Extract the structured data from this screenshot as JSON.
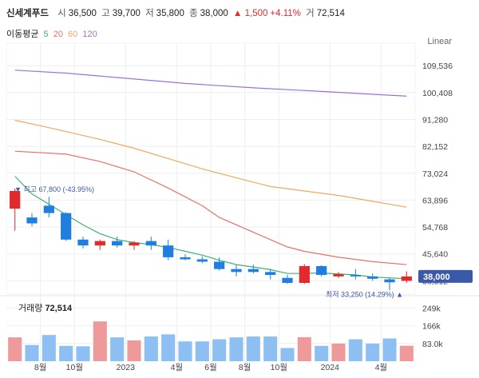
{
  "header": {
    "name": "신세계푸드",
    "open_label": "시",
    "open": "36,500",
    "high_label": "고",
    "high": "39,700",
    "low_label": "저",
    "low": "35,800",
    "close_label": "종",
    "close": "38,000",
    "change": "▲ 1,500",
    "change_pct": "+4.11%",
    "volume_label": "거",
    "volume": "72,514"
  },
  "ma": {
    "label": "이동평균",
    "items": [
      {
        "period": "5",
        "color": "#3cb371"
      },
      {
        "period": "20",
        "color": "#e8716b"
      },
      {
        "period": "60",
        "color": "#f0a860"
      },
      {
        "period": "120",
        "color": "#9a72d8"
      }
    ]
  },
  "scale_mode": "Linear",
  "colors": {
    "up": "#e2292e",
    "down": "#1e7fe0",
    "vol_up": "#ee9a9a",
    "vol_down": "#8ebff2",
    "badge": "#3a5aa8",
    "grid": "#eeeeee"
  },
  "chart_data": {
    "type": "candlestick",
    "y_tick_labels": [
      "109,536",
      "100,408",
      "91,280",
      "82,152",
      "73,024",
      "63,896",
      "54,768",
      "45,640",
      "36,512"
    ],
    "y_ticks": [
      109536,
      100408,
      91280,
      82152,
      73024,
      63896,
      54768,
      45640,
      36512
    ],
    "ylim": [
      32000,
      115000
    ],
    "x_labels": [
      {
        "label": "8월",
        "index": 2
      },
      {
        "label": "10월",
        "index": 4
      },
      {
        "label": "2023",
        "index": 7
      },
      {
        "label": "4월",
        "index": 10
      },
      {
        "label": "6월",
        "index": 12
      },
      {
        "label": "8월",
        "index": 14
      },
      {
        "label": "10월",
        "index": 16
      },
      {
        "label": "2024",
        "index": 19
      },
      {
        "label": "4월",
        "index": 22
      }
    ],
    "candles": [
      {
        "open": 61000,
        "high": 67800,
        "low": 53500,
        "close": 67000
      },
      {
        "open": 58000,
        "high": 59500,
        "low": 55000,
        "close": 56000
      },
      {
        "open": 62000,
        "high": 65000,
        "low": 58000,
        "close": 59500
      },
      {
        "open": 59500,
        "high": 59800,
        "low": 50000,
        "close": 50500
      },
      {
        "open": 50500,
        "high": 51500,
        "low": 47500,
        "close": 48500
      },
      {
        "open": 48500,
        "high": 50500,
        "low": 47000,
        "close": 50000
      },
      {
        "open": 50000,
        "high": 51500,
        "low": 47800,
        "close": 48500
      },
      {
        "open": 48500,
        "high": 50000,
        "low": 47000,
        "close": 49500
      },
      {
        "open": 50000,
        "high": 51500,
        "low": 47000,
        "close": 48500
      },
      {
        "open": 48500,
        "high": 50500,
        "low": 43500,
        "close": 44500
      },
      {
        "open": 44500,
        "high": 45500,
        "low": 43500,
        "close": 43800
      },
      {
        "open": 43800,
        "high": 44800,
        "low": 42500,
        "close": 43000
      },
      {
        "open": 43000,
        "high": 44500,
        "low": 40000,
        "close": 40500
      },
      {
        "open": 40500,
        "high": 42000,
        "low": 38000,
        "close": 39500
      },
      {
        "open": 40500,
        "high": 42000,
        "low": 39000,
        "close": 39500
      },
      {
        "open": 39500,
        "high": 40500,
        "low": 37000,
        "close": 38500
      },
      {
        "open": 37500,
        "high": 38500,
        "low": 35500,
        "close": 35800
      },
      {
        "open": 35800,
        "high": 42200,
        "low": 35500,
        "close": 41500
      },
      {
        "open": 41500,
        "high": 41800,
        "low": 38000,
        "close": 38500
      },
      {
        "open": 38000,
        "high": 39500,
        "low": 37500,
        "close": 38800
      },
      {
        "open": 38500,
        "high": 40500,
        "low": 37000,
        "close": 38000
      },
      {
        "open": 38000,
        "high": 39000,
        "low": 36500,
        "close": 37200
      },
      {
        "open": 37000,
        "high": 37500,
        "low": 33250,
        "close": 36000
      },
      {
        "open": 36500,
        "high": 39700,
        "low": 35800,
        "close": 38000
      }
    ],
    "volume": {
      "label": "거래량",
      "current": "72,514",
      "tick_labels": [
        "249k",
        "166k",
        "83.0k"
      ],
      "ticks": [
        249000,
        166000,
        83000
      ],
      "ymax": 300000,
      "values": [
        112000,
        76000,
        123000,
        72000,
        70000,
        187000,
        112000,
        98000,
        116000,
        126000,
        93000,
        93000,
        103000,
        112000,
        116000,
        116000,
        62000,
        113000,
        72000,
        83000,
        103000,
        83000,
        107000,
        72514
      ]
    },
    "series": [
      {
        "name": "MA5",
        "color": "#3cb371",
        "points": [
          [
            0,
            72000
          ],
          [
            1,
            66000
          ],
          [
            2,
            62500
          ],
          [
            3,
            59000
          ],
          [
            4,
            55500
          ],
          [
            5,
            52500
          ],
          [
            6,
            50500
          ],
          [
            7,
            49500
          ],
          [
            8,
            48800
          ],
          [
            9,
            47800
          ],
          [
            10,
            46500
          ],
          [
            11,
            45200
          ],
          [
            12,
            43500
          ],
          [
            13,
            42000
          ],
          [
            14,
            41200
          ],
          [
            15,
            40300
          ],
          [
            16,
            39000
          ],
          [
            17,
            39000
          ],
          [
            18,
            39200
          ],
          [
            19,
            38800
          ],
          [
            20,
            38500
          ],
          [
            21,
            37800
          ],
          [
            22,
            37500
          ],
          [
            23,
            37200
          ]
        ]
      },
      {
        "name": "MA20",
        "color": "#e8716b",
        "points": [
          [
            0,
            80500
          ],
          [
            3,
            79500
          ],
          [
            5,
            77000
          ],
          [
            7,
            73500
          ],
          [
            9,
            68000
          ],
          [
            11,
            62000
          ],
          [
            12,
            58000
          ],
          [
            14,
            53000
          ],
          [
            16,
            48000
          ],
          [
            17,
            46500
          ],
          [
            19,
            44500
          ],
          [
            21,
            43000
          ],
          [
            23,
            42000
          ]
        ]
      },
      {
        "name": "MA60",
        "color": "#f0a860",
        "points": [
          [
            0,
            91000
          ],
          [
            2,
            88500
          ],
          [
            5,
            84500
          ],
          [
            7,
            81500
          ],
          [
            9,
            78000
          ],
          [
            11,
            74500
          ],
          [
            13,
            71500
          ],
          [
            15,
            68500
          ],
          [
            17,
            67000
          ],
          [
            19,
            65500
          ],
          [
            21,
            63500
          ],
          [
            23,
            61500
          ]
        ]
      },
      {
        "name": "MA120",
        "color": "#9a72d8",
        "points": [
          [
            0,
            108000
          ],
          [
            3,
            107000
          ],
          [
            6,
            105500
          ],
          [
            10,
            103500
          ],
          [
            14,
            102000
          ],
          [
            18,
            100800
          ],
          [
            21,
            99800
          ],
          [
            23,
            99200
          ]
        ]
      }
    ],
    "annotations": {
      "high": {
        "prefix": "▼ 최고",
        "value": "67,800",
        "pct": "(-43.95%)"
      },
      "low": {
        "prefix": "최저",
        "value": "33,250",
        "pct": "(14.29%)",
        "suffix": "▲"
      },
      "current_price": "38,000"
    }
  }
}
